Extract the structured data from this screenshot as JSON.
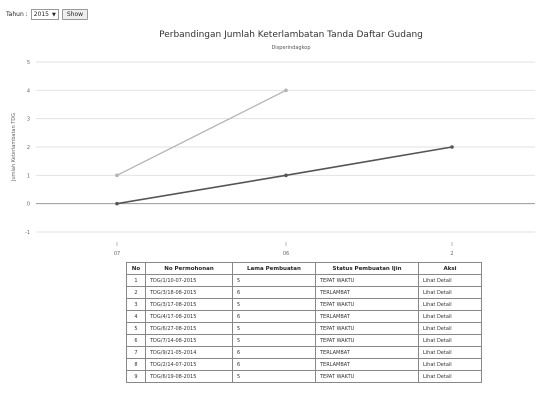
{
  "filter": {
    "label": "Tahun :",
    "year": "2015",
    "show_label": "Show"
  },
  "chart_data": {
    "type": "line",
    "title": "Perbandingan Jumlah Keterlambatan Tanda Daftar Gudang",
    "subtitle": "Disperindagkop",
    "ylabel": "Jumlah Keterlambatan TDG",
    "xlabel": "",
    "categories": [
      "07",
      "06",
      "2"
    ],
    "y_ticks": [
      -1,
      0,
      1,
      2,
      3,
      4,
      5
    ],
    "ylim": [
      -1,
      5
    ],
    "grid": true,
    "legend": "none",
    "series": [
      {
        "values": [
          1,
          4,
          null
        ],
        "color": "#b3b3b3"
      },
      {
        "values": [
          0,
          1,
          2
        ],
        "color": "#555555"
      }
    ]
  },
  "table": {
    "headers": [
      "No",
      "No Permohonan",
      "Lama Pembuatan",
      "Status Pembuatan Ijin",
      "Aksi"
    ],
    "rows": [
      [
        "1",
        "TDG/1/10-07-2015",
        "5",
        "TEPAT WAKTU",
        "Lihat Detail"
      ],
      [
        "2",
        "TDG/3/18-08-2015",
        "6",
        "TERLAMBAT",
        "Lihat Detail"
      ],
      [
        "3",
        "TDG/3/17-08-2015",
        "5",
        "TEPAT WAKTU",
        "Lihat Detail"
      ],
      [
        "4",
        "TDG/4/17-08-2015",
        "6",
        "TERLAMBAT",
        "Lihat Detail"
      ],
      [
        "5",
        "TDG/6/27-08-2015",
        "5",
        "TEPAT WAKTU",
        "Lihat Detail"
      ],
      [
        "6",
        "TDG/7/14-08-2015",
        "5",
        "TEPAT WAKTU",
        "Lihat Detail"
      ],
      [
        "7",
        "TDG/9/21-05-2014",
        "6",
        "TERLAMBAT",
        "Lihat Detail"
      ],
      [
        "8",
        "TDG/2/14-07-2015",
        "6",
        "TERLAMBAT",
        "Lihat Detail"
      ],
      [
        "9",
        "TDG/6/19-08-2015",
        "5",
        "TEPAT WAKTU",
        "Lihat Detail"
      ]
    ]
  }
}
